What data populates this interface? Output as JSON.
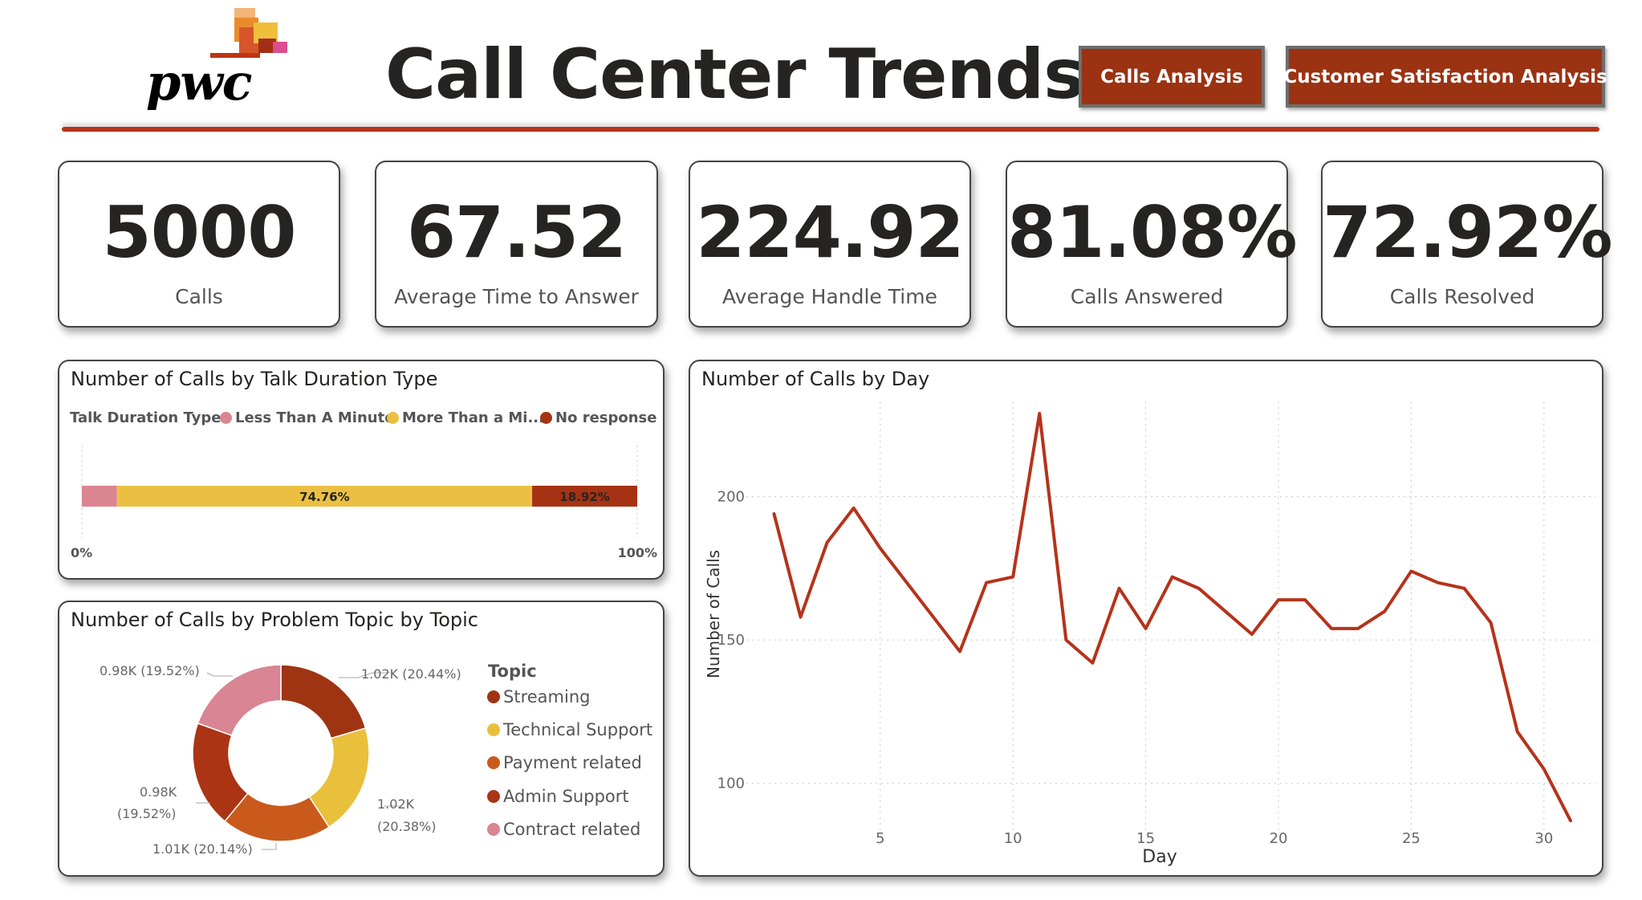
{
  "header": {
    "logo_text": "pwc",
    "title": "Call Center Trends",
    "nav": [
      {
        "label": "Calls Analysis"
      },
      {
        "label": "Customer Satisfaction Analysis"
      }
    ]
  },
  "kpis": [
    {
      "value": "5000",
      "label": "Calls"
    },
    {
      "value": "67.52",
      "label": "Average Time to Answer"
    },
    {
      "value": "224.92",
      "label": "Average Handle Time"
    },
    {
      "value": "81.08%",
      "label": "Calls Answered"
    },
    {
      "value": "72.92%",
      "label": "Calls Resolved"
    }
  ],
  "colors": {
    "accent": "#9b3212",
    "line": "#b5331a",
    "streaming": "#9e3412",
    "technical": "#e9c03c",
    "payment": "#c95a1c",
    "admin": "#ab3414",
    "contract": "#d98593",
    "less_than_minute": "#db8591",
    "more_than_minute": "#ebc042",
    "no_response": "#a53213"
  },
  "chart_data": [
    {
      "type": "bar",
      "orientation": "horizontal-100%-stacked",
      "title": "Number of Calls by Talk Duration Type",
      "legend_title": "Talk Duration Type",
      "legend_placement": "top",
      "series": [
        {
          "name": "Less Than A Minute",
          "legend_label": "Less Than A Minute",
          "value": 6.32,
          "label": ""
        },
        {
          "name": "More Than a Minute",
          "legend_label": "More Than a Mi...",
          "value": 74.76,
          "label": "74.76%"
        },
        {
          "name": "No response",
          "legend_label": "No response",
          "value": 18.92,
          "label": "18.92%"
        }
      ],
      "axis": {
        "min_label": "0%",
        "max_label": "100%"
      }
    },
    {
      "type": "pie",
      "variant": "donut",
      "title": "Number of Calls by Problem Topic by Topic",
      "legend_title": "Topic",
      "legend_placement": "right",
      "slices": [
        {
          "name": "Streaming",
          "value": 1.02,
          "percent": 20.44,
          "label": "1.02K (20.44%)"
        },
        {
          "name": "Technical Support",
          "value": 1.02,
          "percent": 20.38,
          "label": "1.02K (20.38%)"
        },
        {
          "name": "Payment related",
          "value": 1.01,
          "percent": 20.14,
          "label": "1.01K (20.14%)"
        },
        {
          "name": "Admin Support",
          "value": 0.98,
          "percent": 19.52,
          "label": "0.98K (19.52%)"
        },
        {
          "name": "Contract related",
          "value": 0.98,
          "percent": 19.52,
          "label": "0.98K (19.52%)"
        }
      ],
      "label_parts": {
        "streaming": "1.02K (20.44%)",
        "technical_a": "1.02K",
        "technical_b": "(20.38%)",
        "payment": "1.01K (20.14%)",
        "admin_a": "0.98K",
        "admin_b": "(19.52%)",
        "contract": "0.98K (19.52%)"
      }
    },
    {
      "type": "line",
      "title": "Number of Calls by Day",
      "xlabel": "Day",
      "ylabel": "Number of Calls",
      "x": [
        1,
        2,
        3,
        4,
        5,
        6,
        7,
        8,
        9,
        10,
        11,
        12,
        13,
        14,
        15,
        16,
        17,
        18,
        19,
        20,
        21,
        22,
        23,
        24,
        25,
        26,
        27,
        28,
        29,
        30,
        31
      ],
      "y": [
        194,
        158,
        184,
        196,
        182,
        170,
        158,
        146,
        170,
        172,
        229,
        150,
        142,
        168,
        154,
        172,
        168,
        160,
        152,
        164,
        164,
        154,
        154,
        160,
        174,
        170,
        168,
        156,
        118,
        105,
        87
      ],
      "xlim": [
        0.2,
        32
      ],
      "ylim": [
        82,
        236
      ],
      "xticks": [
        5,
        10,
        15,
        20,
        25,
        30
      ],
      "yticks": [
        100,
        150,
        200
      ],
      "grid": true
    }
  ]
}
